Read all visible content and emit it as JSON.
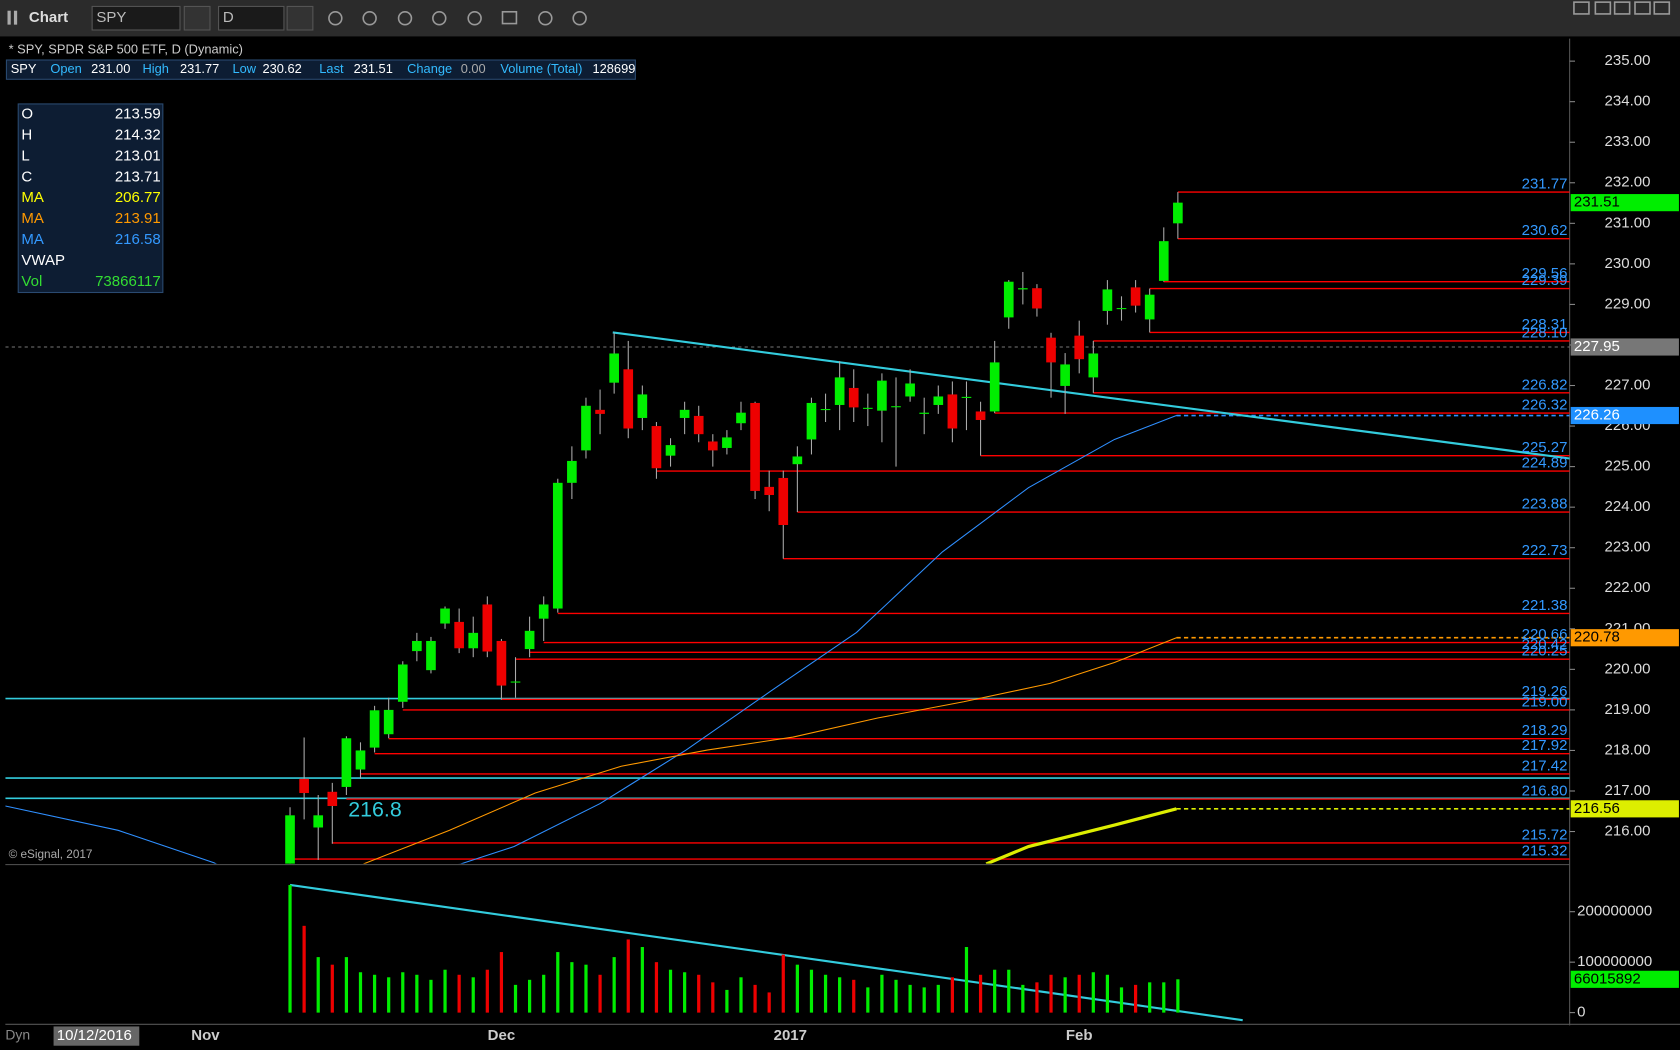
{
  "toolbar": {
    "title": "Chart",
    "symbol": "SPY",
    "interval": "D"
  },
  "quote_bar": {
    "symbol": "SPY",
    "fields": [
      {
        "label": "Open",
        "value": "231.00"
      },
      {
        "label": "High",
        "value": "231.77"
      },
      {
        "label": "Low",
        "value": "230.62"
      },
      {
        "label": "Last",
        "value": "231.51"
      },
      {
        "label": "Change",
        "value": "0.00"
      },
      {
        "label": "Volume (Total)",
        "value": "128699"
      }
    ]
  },
  "info_box": {
    "rows": [
      {
        "label": "O",
        "value": "213.59",
        "color": "#ffffff"
      },
      {
        "label": "H",
        "value": "214.32",
        "color": "#ffffff"
      },
      {
        "label": "L",
        "value": "213.01",
        "color": "#ffffff"
      },
      {
        "label": "C",
        "value": "213.71",
        "color": "#ffffff"
      },
      {
        "label": "MA",
        "value": "206.77",
        "color": "#ffff00"
      },
      {
        "label": "MA",
        "value": "213.91",
        "color": "#ff9900"
      },
      {
        "label": "MA",
        "value": "216.58",
        "color": "#3399ff"
      },
      {
        "label": "VWAP",
        "color": "#ffffff"
      },
      {
        "label": "Vol",
        "value": "73866117",
        "color": "#33dd33"
      }
    ]
  },
  "footer": {
    "mode": "Dyn",
    "date": "10/12/2016"
  },
  "chart_data": {
    "type": "candlestick",
    "title": "* SPY, SPDR S&P 500 ETF, D (Dynamic)",
    "copyright": "© eSignal, 2017",
    "annotation": "216.8",
    "categories": [
      null,
      null,
      null,
      null,
      null,
      null,
      null,
      null,
      null,
      null,
      null,
      null,
      null,
      null,
      null,
      null,
      null,
      null,
      null,
      null,
      null,
      null,
      null,
      null,
      null,
      null,
      null,
      null,
      null,
      null,
      null,
      null,
      null,
      null,
      null,
      null,
      null,
      null,
      null,
      null,
      null,
      null,
      null,
      null,
      null,
      null,
      null,
      null,
      null,
      null,
      null,
      null,
      null,
      null,
      null,
      null,
      null,
      null,
      null,
      null,
      null,
      null,
      null,
      null
    ],
    "open": [
      213.8,
      217.3,
      216.1,
      216.98,
      217.1,
      217.53,
      218.07,
      218.4,
      219.2,
      220.45,
      219.98,
      221.13,
      221.17,
      220.52,
      221.6,
      220.7,
      219.7,
      220.5,
      221.25,
      221.5,
      224.6,
      225.4,
      226.4,
      227.07,
      227.4,
      226.2,
      226.0,
      225.27,
      226.2,
      226.25,
      225.62,
      225.46,
      226.07,
      226.57,
      224.5,
      224.72,
      225.06,
      225.67,
      226.4,
      226.52,
      226.94,
      226.43,
      226.38,
      226.48,
      226.73,
      226.3,
      226.52,
      226.78,
      226.7,
      226.36,
      226.36,
      228.68,
      229.37,
      229.4,
      228.18,
      226.99,
      228.23,
      227.2,
      228.84,
      228.9,
      229.42,
      228.63,
      229.58,
      231.0
    ],
    "high": [
      216.6,
      218.32,
      216.9,
      217.2,
      218.35,
      218.2,
      219.1,
      219.3,
      220.2,
      220.9,
      220.8,
      221.55,
      221.5,
      221.3,
      221.8,
      220.75,
      220.3,
      221.3,
      221.8,
      224.7,
      225.5,
      226.7,
      226.9,
      228.3,
      228.1,
      227.0,
      226.1,
      225.7,
      226.6,
      226.5,
      225.8,
      225.9,
      226.6,
      226.6,
      224.9,
      224.9,
      225.5,
      226.7,
      226.8,
      227.6,
      227.4,
      226.8,
      227.3,
      227.2,
      227.4,
      226.7,
      227.0,
      227.1,
      227.1,
      226.6,
      228.1,
      229.6,
      229.8,
      229.5,
      228.3,
      227.8,
      228.6,
      228.1,
      229.6,
      229.2,
      229.6,
      229.39,
      230.9,
      231.77
    ],
    "low": [
      212.8,
      216.3,
      215.3,
      215.7,
      216.9,
      217.3,
      217.95,
      218.3,
      219.05,
      220.2,
      219.9,
      221.0,
      220.4,
      220.3,
      220.3,
      219.25,
      219.3,
      220.3,
      220.7,
      221.4,
      224.2,
      225.2,
      225.8,
      226.8,
      225.7,
      225.9,
      224.7,
      225.0,
      225.8,
      225.6,
      225.0,
      225.3,
      225.9,
      224.2,
      223.9,
      222.73,
      223.88,
      225.3,
      226.1,
      225.9,
      226.1,
      226.0,
      225.6,
      225.0,
      226.6,
      225.8,
      226.3,
      225.6,
      225.9,
      225.27,
      226.32,
      228.4,
      229.0,
      228.7,
      226.7,
      226.3,
      227.3,
      226.82,
      228.5,
      228.6,
      228.8,
      228.31,
      229.56,
      230.62
    ],
    "close": [
      216.4,
      216.95,
      216.4,
      216.63,
      218.3,
      218.0,
      218.99,
      219.0,
      220.12,
      220.7,
      220.7,
      221.5,
      220.52,
      220.9,
      220.44,
      219.6,
      219.7,
      220.95,
      221.6,
      224.6,
      225.14,
      226.5,
      226.3,
      227.79,
      225.94,
      226.78,
      224.96,
      225.53,
      226.4,
      225.8,
      225.4,
      225.72,
      226.33,
      224.4,
      224.3,
      223.56,
      225.25,
      226.57,
      226.42,
      227.2,
      226.46,
      226.45,
      227.12,
      226.49,
      227.05,
      226.33,
      226.73,
      225.94,
      226.72,
      226.15,
      227.57,
      229.56,
      229.4,
      228.9,
      227.57,
      227.52,
      227.65,
      227.79,
      229.37,
      228.91,
      228.97,
      229.24,
      230.56,
      231.51
    ],
    "up_color": "#00ee00",
    "down_color": "#ee0000",
    "xlim": [
      -20.2,
      90.8
    ],
    "xticks": [
      {
        "value": -6,
        "label": "Nov"
      },
      {
        "value": 15,
        "label": "Dec"
      },
      {
        "value": 35.5,
        "label": "2017"
      },
      {
        "value": 56,
        "label": "Feb"
      }
    ],
    "ylim": [
      215.21,
      235.53
    ],
    "yticks": [
      {
        "value": 216,
        "label": "216.00"
      },
      {
        "value": 217,
        "label": "217.00"
      },
      {
        "value": 218,
        "label": "218.00"
      },
      {
        "value": 219,
        "label": "219.00"
      },
      {
        "value": 220,
        "label": "220.00"
      },
      {
        "value": 221,
        "label": "221.00"
      },
      {
        "value": 222,
        "label": "222.00"
      },
      {
        "value": 223,
        "label": "223.00"
      },
      {
        "value": 224,
        "label": "224.00"
      },
      {
        "value": 225,
        "label": "225.00"
      },
      {
        "value": 226,
        "label": "226.00"
      },
      {
        "value": 227,
        "label": "227.00"
      },
      {
        "value": 228,
        "label": "228.00"
      },
      {
        "value": 229,
        "label": "229.00"
      },
      {
        "value": 230,
        "label": "230.00"
      },
      {
        "value": 231,
        "label": "231.00"
      },
      {
        "value": 232,
        "label": "232.00"
      },
      {
        "value": 233,
        "label": "233.00"
      },
      {
        "value": 234,
        "label": "234.00"
      },
      {
        "value": 235,
        "label": "235.00"
      }
    ],
    "overlays": [
      {
        "color": "#2f8fff",
        "x": [
          -20.2,
          -12.2,
          -5.4,
          0,
          12.1,
          15.9,
          22,
          28.1,
          34.1,
          40.2,
          46.3,
          52.4,
          58.5,
          62.9
        ],
        "values": [
          216.63,
          216.03,
          215.23,
          214.3,
          215.2,
          215.63,
          216.69,
          218.01,
          219.46,
          220.91,
          222.9,
          224.48,
          225.67,
          226.26
        ]
      },
      {
        "color": "#ff9900",
        "x": [
          5.2,
          11.3,
          17.4,
          23.5,
          29.6,
          35.7,
          41.7,
          47.8,
          53.9,
          58.5,
          62.9
        ],
        "values": [
          215.2,
          216.03,
          216.95,
          217.61,
          218.01,
          218.33,
          218.8,
          219.2,
          219.65,
          220.17,
          220.78
        ]
      },
      {
        "color": "#ddee00",
        "x": [
          49.4,
          52.4,
          58.5,
          62.9
        ],
        "values": [
          215.2,
          215.63,
          216.16,
          216.56
        ]
      }
    ],
    "levels": {
      "color": "#ff0000",
      "label_color": "#3399ff",
      "x": [
        63,
        63,
        62,
        61,
        61,
        57,
        57,
        50,
        49,
        26,
        36,
        35,
        19,
        18,
        17,
        16,
        15,
        8,
        7,
        6,
        5,
        4,
        3,
        0
      ],
      "values": [
        231.77,
        230.62,
        229.56,
        229.39,
        228.31,
        228.1,
        226.82,
        226.32,
        225.27,
        224.89,
        223.88,
        222.73,
        221.38,
        220.66,
        220.42,
        220.25,
        219.26,
        219.0,
        218.29,
        217.92,
        217.42,
        216.8,
        215.72,
        215.32
      ],
      "value_labels": [
        "231.77",
        "230.62",
        "229.56",
        "229.39",
        "228.31",
        "228.10",
        "226.82",
        "226.32",
        "225.27",
        "224.89",
        "223.88",
        "222.73",
        "221.38",
        "220.66",
        "220.42",
        "220.25",
        "219.26",
        "219.00",
        "218.29",
        "217.92",
        "217.42",
        "216.80",
        "215.72",
        "215.32"
      ]
    },
    "hlines": {
      "color": "#33ccdd",
      "values": [
        219.28,
        217.32,
        216.82
      ]
    },
    "trendlines": [
      {
        "color": "#33ccdd",
        "x": [
          22.9,
          90.8
        ],
        "values": [
          228.31,
          225.2
        ]
      }
    ],
    "crosshair": {
      "value": 227.95,
      "label": "227.95",
      "color": "#777777",
      "text_color": "#ffffff"
    },
    "tags": [
      {
        "value": 231.51,
        "label": "231.51",
        "color": "#00ee00",
        "text_color": "#000000"
      },
      {
        "value": 226.26,
        "label": "226.26",
        "color": "#1e90ff",
        "text_color": "#ffffff"
      },
      {
        "value": 220.78,
        "label": "220.78",
        "color": "#ff9900",
        "text_color": "#000000"
      },
      {
        "value": 216.56,
        "label": "216.56",
        "color": "#ddee00",
        "text_color": "#000000"
      }
    ],
    "volume": {
      "values": [
        253000000,
        172000000,
        110000000,
        95000000,
        110000000,
        80000000,
        75000000,
        70000000,
        80000000,
        75000000,
        65000000,
        85000000,
        75000000,
        70000000,
        85000000,
        120000000,
        55000000,
        65000000,
        75000000,
        120000000,
        100000000,
        95000000,
        75000000,
        110000000,
        145000000,
        130000000,
        100000000,
        85000000,
        80000000,
        75000000,
        60000000,
        45000000,
        70000000,
        55000000,
        40000000,
        115000000,
        95000000,
        85000000,
        75000000,
        70000000,
        65000000,
        50000000,
        75000000,
        65000000,
        55000000,
        50000000,
        55000000,
        70000000,
        130000000,
        75000000,
        85000000,
        85000000,
        55000000,
        60000000,
        75000000,
        70000000,
        75000000,
        80000000,
        75000000,
        50000000,
        55000000,
        60000000,
        60000000,
        66015892
      ],
      "ylim": [
        -21000000,
        289000000
      ],
      "yticks": [
        0,
        100000000,
        200000000
      ],
      "tag": {
        "value": 66015892,
        "label": "66015892",
        "color": "#00ee00",
        "text_color": "#000000"
      },
      "trendline": {
        "color": "#33ccdd",
        "x": [
          0,
          67.6
        ],
        "values": [
          253000000,
          -15000000
        ]
      }
    }
  }
}
